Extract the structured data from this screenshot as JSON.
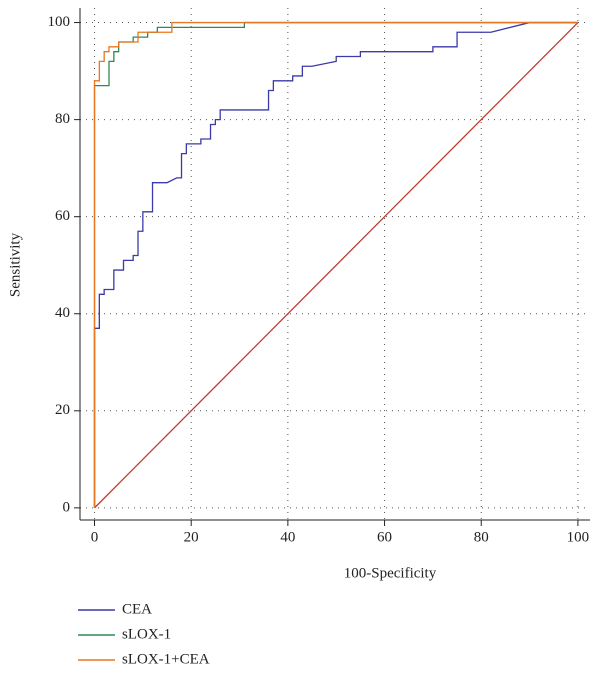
{
  "chart_data": {
    "type": "line",
    "x_label": "100-Specificity",
    "y_label": "Sensitivity",
    "xlim": [
      -3,
      102.5
    ],
    "ylim": [
      -2.5,
      103
    ],
    "xticks": [
      0,
      20,
      40,
      60,
      80,
      100
    ],
    "yticks": [
      0,
      20,
      40,
      60,
      80,
      100
    ],
    "grid": true,
    "legend": "bottom",
    "reference_line": {
      "x": [
        0,
        100
      ],
      "values": [
        0,
        100
      ],
      "color": "#c0392b"
    },
    "series": [
      {
        "name": "CEA",
        "color": "#3a3aa8",
        "x": [
          0,
          0,
          1,
          1,
          2,
          2,
          4,
          4,
          6,
          6,
          8,
          8,
          9,
          9,
          10,
          10,
          12,
          12,
          15,
          17,
          18,
          18,
          19,
          19,
          22,
          22,
          24,
          24,
          25,
          25,
          26,
          26,
          36,
          36,
          37,
          37,
          41,
          41,
          43,
          43,
          45,
          50,
          50,
          55,
          55,
          70,
          70,
          75,
          75,
          82,
          90,
          100
        ],
        "values": [
          0,
          37,
          37,
          44,
          44,
          45,
          45,
          49,
          49,
          51,
          51,
          52,
          52,
          57,
          57,
          61,
          61,
          67,
          67,
          68,
          68,
          73,
          73,
          75,
          75,
          76,
          76,
          79,
          79,
          80,
          80,
          82,
          82,
          86,
          86,
          88,
          88,
          89,
          89,
          91,
          91,
          92,
          93,
          93,
          94,
          94,
          95,
          95,
          98,
          98,
          100,
          100
        ]
      },
      {
        "name": "sLOX-1",
        "color": "#2e8b57",
        "x": [
          0,
          0,
          3,
          3,
          4,
          4,
          5,
          5,
          8,
          8,
          11,
          11,
          13,
          13,
          31,
          31,
          100
        ],
        "values": [
          0,
          87,
          87,
          92,
          92,
          94,
          94,
          96,
          96,
          97,
          97,
          98,
          98,
          99,
          99,
          100,
          100
        ]
      },
      {
        "name": "sLOX-1+CEA",
        "color": "#e87722",
        "x": [
          0,
          0,
          1,
          1,
          2,
          2,
          3,
          3,
          5,
          5,
          9,
          9,
          16,
          16,
          100
        ],
        "values": [
          0,
          88,
          88,
          92,
          92,
          94,
          94,
          95,
          95,
          96,
          96,
          98,
          98,
          100,
          100
        ]
      }
    ]
  }
}
